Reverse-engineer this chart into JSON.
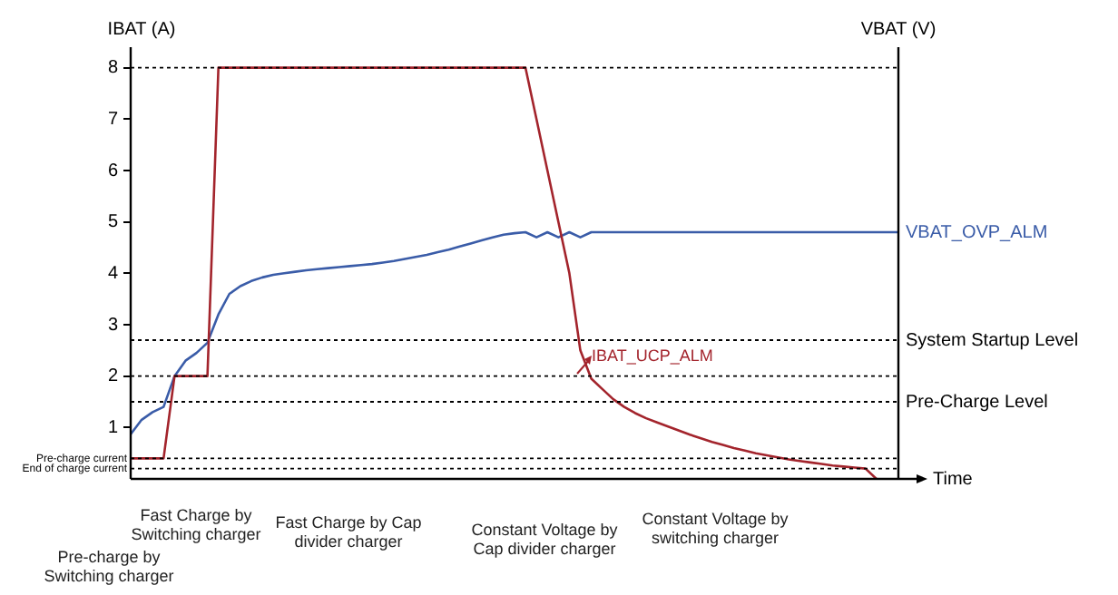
{
  "chart_data": {
    "type": "line",
    "xlabel": "Time",
    "ylabel": "IBAT (A)",
    "y2label": "VBAT (V)",
    "categories": [
      null,
      null,
      null,
      null,
      null,
      null,
      null,
      null,
      null,
      null,
      null,
      null,
      null,
      null,
      null,
      null,
      null,
      null,
      null,
      null,
      null,
      null,
      null,
      null,
      null,
      null,
      null,
      null,
      null,
      null,
      null,
      null,
      null,
      null,
      null,
      null,
      null,
      null,
      null,
      null,
      null,
      null,
      null,
      null,
      null,
      null,
      null,
      null,
      null,
      null,
      null,
      null,
      null,
      null,
      null,
      null,
      null,
      null,
      null,
      null,
      null,
      null,
      null,
      null,
      null,
      null,
      null,
      null,
      null,
      null,
      null
    ],
    "series": [
      {
        "color": "#a3242c",
        "values": [
          0.4,
          0.4,
          0.4,
          0.4,
          2,
          2,
          2,
          2,
          8,
          8,
          8,
          8,
          8,
          8,
          8,
          8,
          8,
          8,
          8,
          8,
          8,
          8,
          8,
          8,
          8,
          8,
          8,
          8,
          8,
          8,
          8,
          8,
          8,
          8,
          8,
          8,
          8,
          7,
          6,
          5,
          4,
          2.5,
          1.95,
          1.75,
          1.55,
          1.4,
          1.28,
          1.18,
          1.1,
          1.02,
          0.94,
          0.86,
          0.79,
          0.72,
          0.66,
          0.6,
          0.55,
          0.5,
          0.46,
          0.42,
          0.38,
          0.35,
          0.32,
          0.29,
          0.26,
          0.24,
          0.22,
          0.2,
          0,
          null,
          null
        ]
      },
      {
        "name": "VBAT_OVP_ALM",
        "color": "#3a5ca8",
        "values": [
          0.87,
          1.15,
          1.3,
          1.4,
          2.0,
          2.3,
          2.45,
          2.65,
          3.2,
          3.6,
          3.75,
          3.85,
          3.92,
          3.97,
          4.0,
          4.03,
          4.06,
          4.08,
          4.1,
          4.12,
          4.14,
          4.16,
          4.18,
          4.21,
          4.24,
          4.28,
          4.32,
          4.36,
          4.41,
          4.46,
          4.52,
          4.58,
          4.64,
          4.7,
          4.75,
          4.78,
          4.8,
          4.7,
          4.8,
          4.7,
          4.8,
          4.7,
          4.8,
          4.8,
          4.8,
          4.8,
          4.8,
          4.8,
          4.8,
          4.8,
          4.8,
          4.8,
          4.8,
          4.8,
          4.8,
          4.8,
          4.8,
          4.8,
          4.8,
          4.8,
          4.8,
          4.8,
          4.8,
          4.8,
          4.8,
          4.8,
          4.8,
          4.8,
          4.8,
          4.8,
          4.8
        ]
      }
    ],
    "ylim": [
      0,
      8.4
    ],
    "yticks": [
      1,
      2,
      3,
      4,
      5,
      6,
      7,
      8
    ],
    "tick_labels": "y",
    "grid": false,
    "legend": false,
    "marker": "none",
    "line_style": "solid",
    "ref_lines": [
      {
        "axis": "y",
        "value": 8,
        "label": null
      },
      {
        "axis": "y",
        "value": 2,
        "label": null
      },
      {
        "axis": "y",
        "value": 2.7,
        "label": "System Startup Level"
      },
      {
        "axis": "y",
        "value": 1.5,
        "label": "Pre-Charge Level"
      },
      {
        "axis": "y",
        "value": 0.4,
        "label": "Pre-charge current"
      },
      {
        "axis": "y",
        "value": 0.2,
        "label": "End of charge current"
      }
    ],
    "annotations": [
      "IBAT_UCP_ALM",
      "Pre-charge by Switching charger",
      "Fast Charge by Switching charger",
      "Fast Charge by Cap divider charger",
      "Constant Voltage by Cap divider charger",
      "Constant Voltage by switching charger"
    ]
  }
}
